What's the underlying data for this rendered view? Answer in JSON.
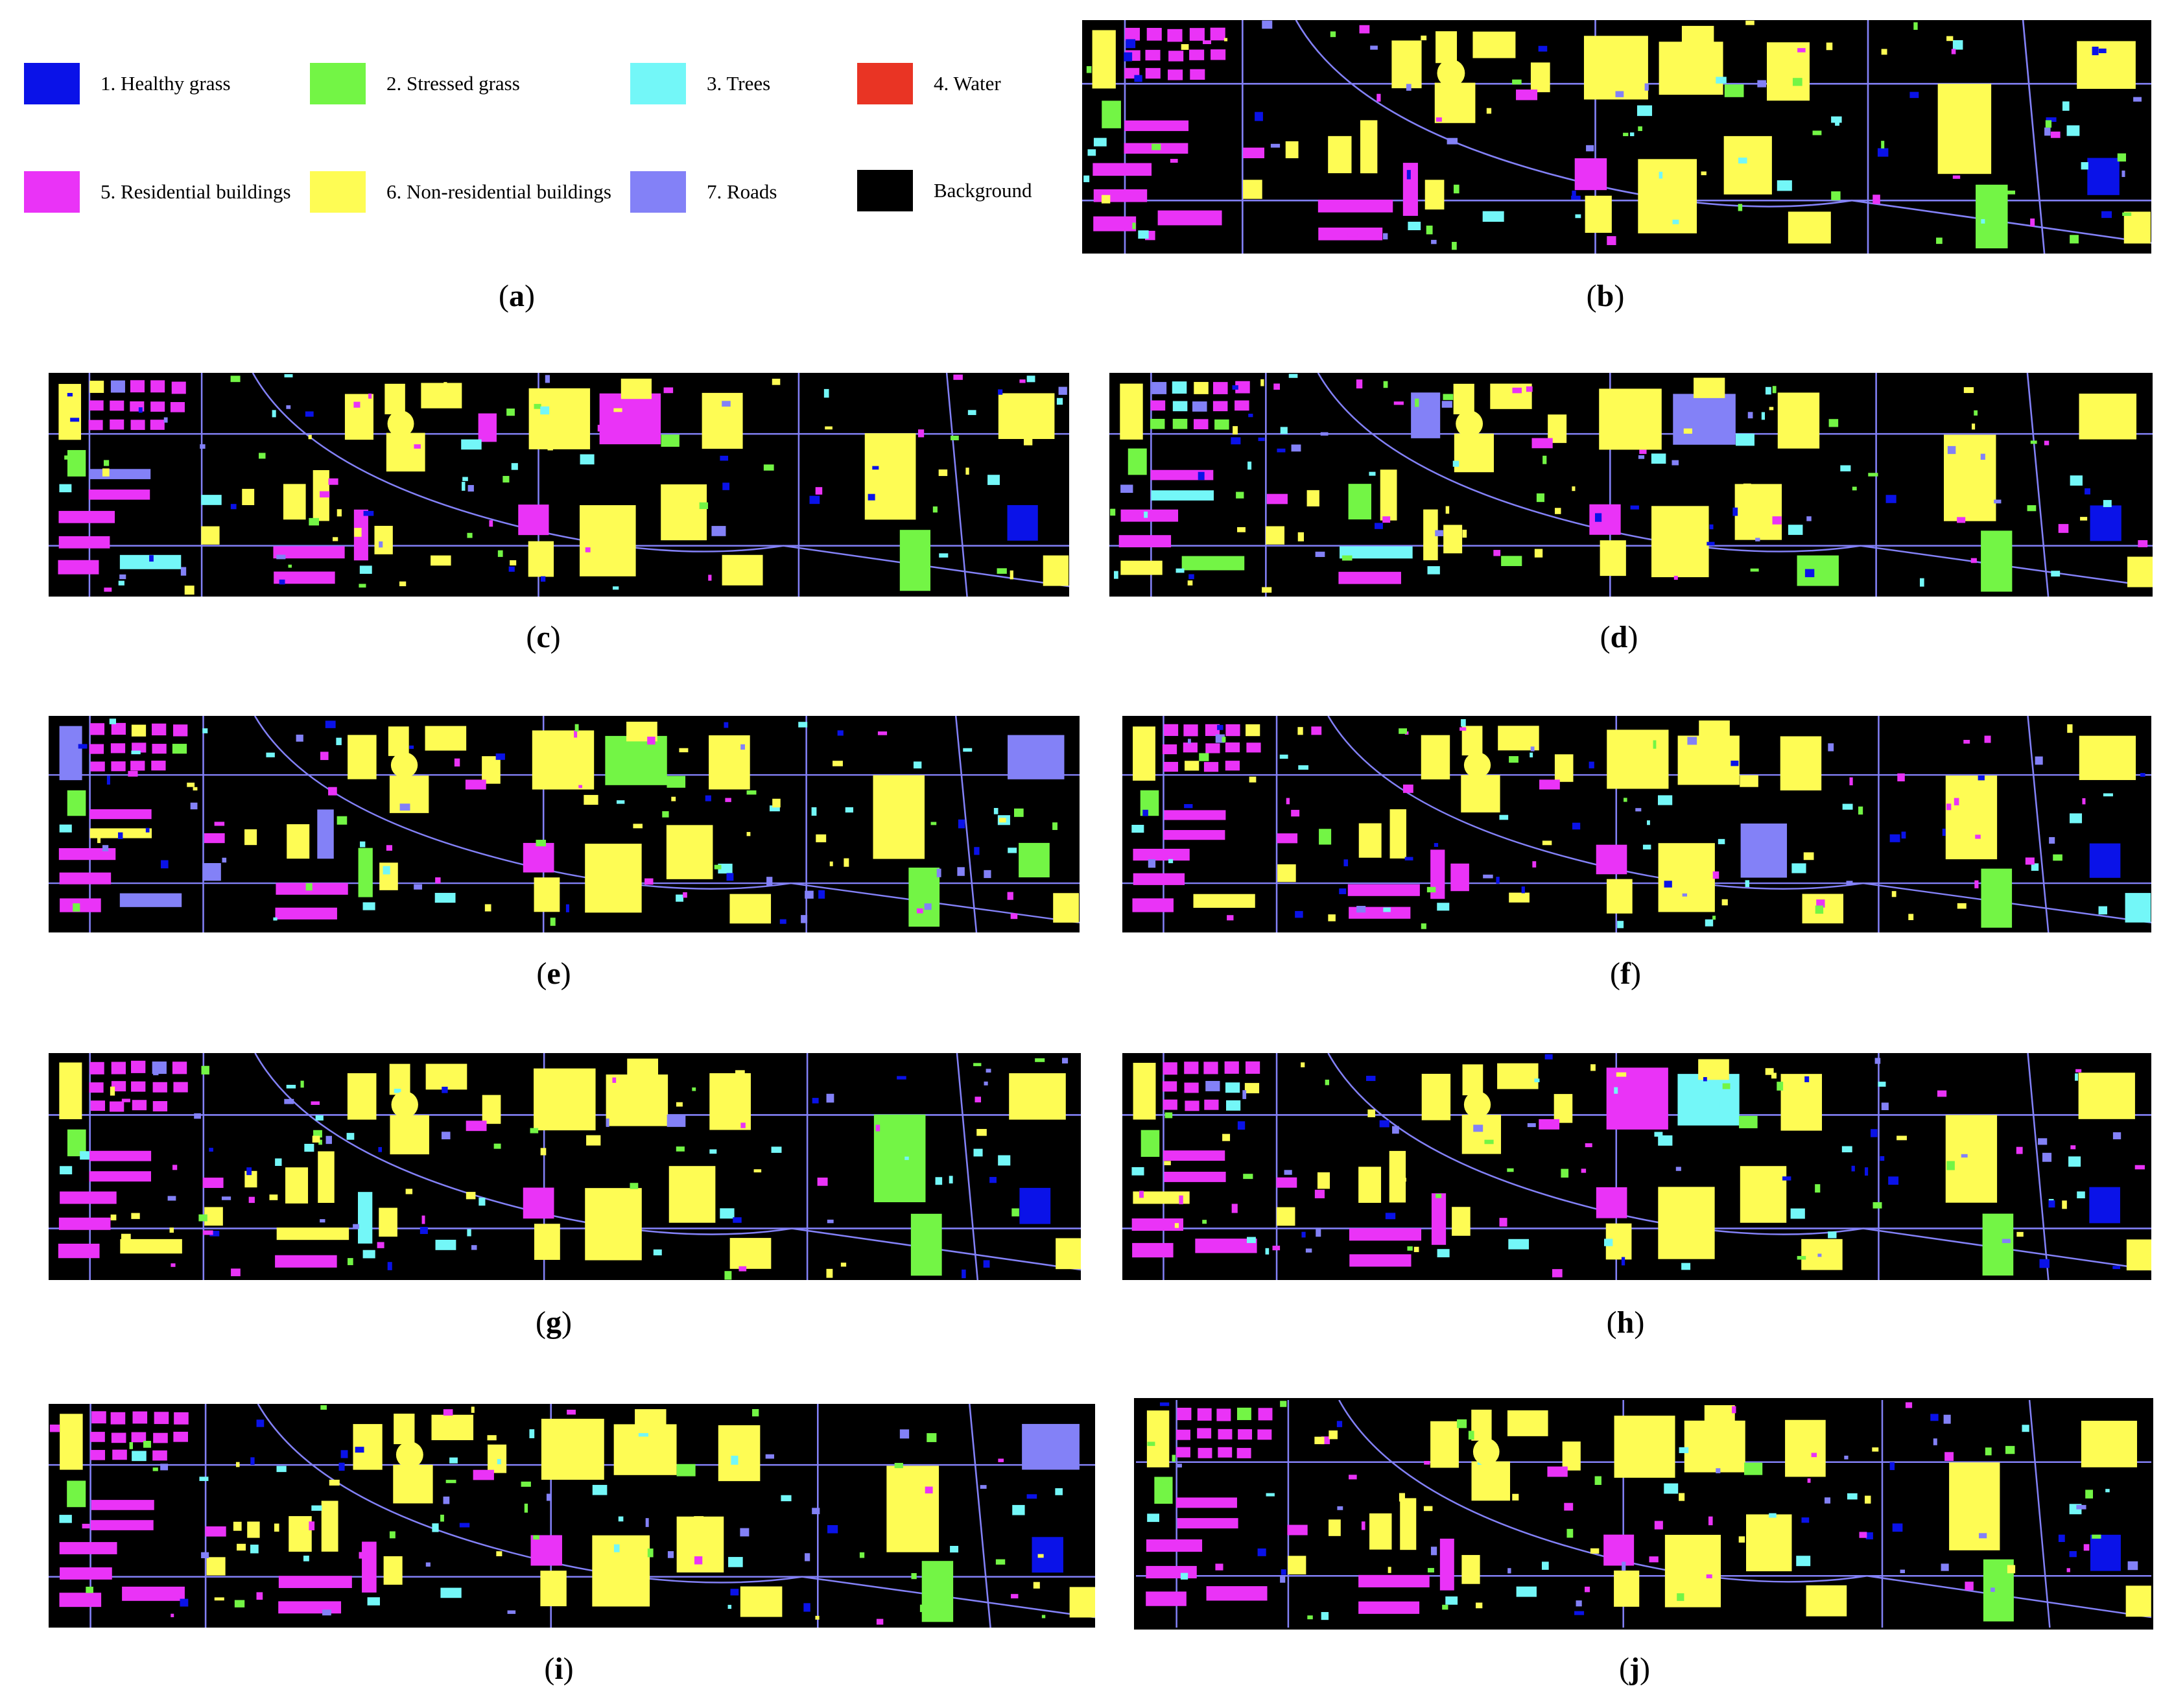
{
  "legend": {
    "items": [
      {
        "label": "1. Healthy grass",
        "color": "#0a12e8"
      },
      {
        "label": "2. Stressed grass",
        "color": "#73f545"
      },
      {
        "label": "3. Trees",
        "color": "#73f7f8"
      },
      {
        "label": "4. Water",
        "color": "#e93424"
      },
      {
        "label": "5. Residential buildings",
        "color": "#ea33f7"
      },
      {
        "label": "6. Non-residential buildings",
        "color": "#fefc54"
      },
      {
        "label": "7. Roads",
        "color": "#8381f7"
      },
      {
        "label": "Background",
        "color": "#000000"
      }
    ]
  },
  "captions": {
    "a": "a",
    "b": "b",
    "c": "c",
    "d": "d",
    "e": "e",
    "f": "f",
    "g": "g",
    "h": "h",
    "i": "i",
    "j": "j"
  }
}
